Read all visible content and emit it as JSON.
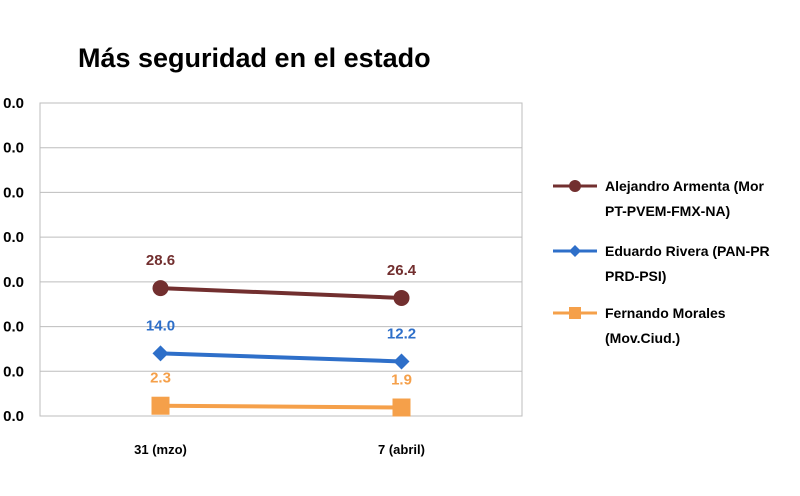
{
  "chart_data": {
    "type": "line",
    "title": "Más seguridad  en el estado",
    "categories": [
      "31 (mzo)",
      "7 (abril)"
    ],
    "yticks": [
      "0.0",
      "0.0",
      "0.0",
      "0.0",
      "0.0",
      "0.0",
      "0.0",
      "0.0"
    ],
    "ylim": [
      0,
      70
    ],
    "grid": true,
    "legend_position": "right",
    "series": [
      {
        "name": "Alejandro Armenta (Morena-PT-PVEM-FMX-NA)",
        "legend_lines": [
          "Alejandro Armenta (Mor",
          "PT-PVEM-FMX-NA)"
        ],
        "values": [
          28.6,
          26.4
        ],
        "labels": [
          "28.6",
          "26.4"
        ],
        "color": "#722F2F",
        "marker": "circle"
      },
      {
        "name": "Eduardo Rivera (PAN-PRI-PRD-PSI)",
        "legend_lines": [
          "Eduardo Rivera  (PAN-PR",
          "PRD-PSI)"
        ],
        "values": [
          14.0,
          12.2
        ],
        "labels": [
          "14.0",
          "12.2"
        ],
        "color": "#2E6FC9",
        "marker": "diamond"
      },
      {
        "name": "Fernando Morales (Mov.Ciud.)",
        "legend_lines": [
          "Fernando Morales",
          "(Mov.Ciud.)"
        ],
        "values": [
          2.3,
          1.9
        ],
        "labels": [
          "2.3",
          "1.9"
        ],
        "color": "#F5A04A",
        "marker": "square"
      }
    ]
  }
}
